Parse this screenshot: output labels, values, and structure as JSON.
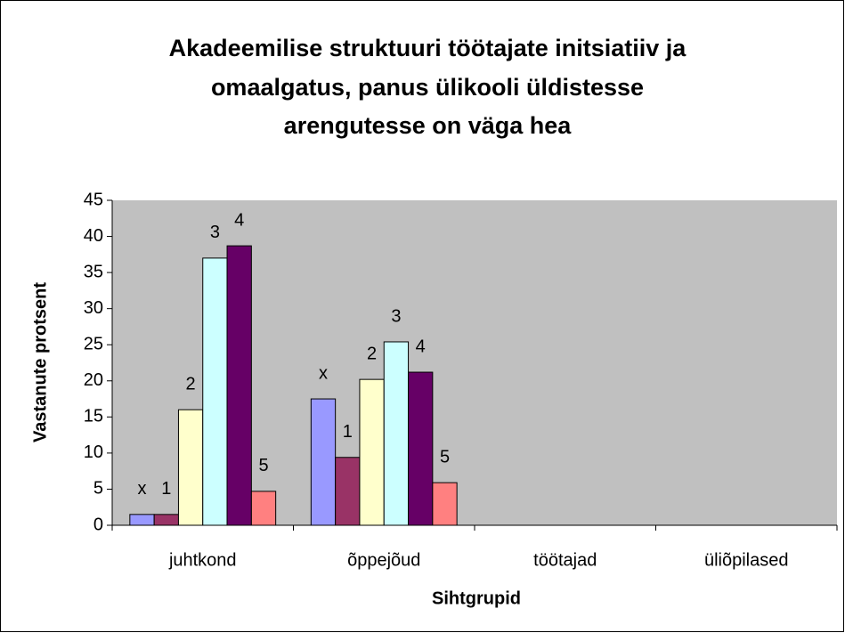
{
  "chart_data": {
    "type": "bar",
    "title": [
      "Akadeemilise struktuuri töötajate initsiatiiv ja",
      "omaalgatus, panus ülikooli üldistesse",
      "arengutesse on väga hea"
    ],
    "x_label": "Sihtgrupid",
    "y_label": "Vastanute protsent",
    "categories": [
      "juhtkond",
      "õppejõud",
      "töötajad",
      "üliõpilased"
    ],
    "series": [
      {
        "name": "x",
        "color": "#9999ff",
        "values": [
          1.5,
          17.5,
          null,
          null
        ]
      },
      {
        "name": "1",
        "color": "#993366",
        "values": [
          1.5,
          9.4,
          null,
          null
        ]
      },
      {
        "name": "2",
        "color": "#ffffcc",
        "values": [
          16,
          20.2,
          null,
          null
        ]
      },
      {
        "name": "3",
        "color": "#ccffff",
        "values": [
          37,
          25.4,
          null,
          null
        ]
      },
      {
        "name": "4",
        "color": "#660066",
        "values": [
          38.7,
          21.2,
          null,
          null
        ]
      },
      {
        "name": "5",
        "color": "#ff8080",
        "values": [
          4.7,
          5.9,
          null,
          null
        ]
      }
    ],
    "ylim": [
      0,
      45
    ],
    "yticks": [
      0,
      5,
      10,
      15,
      20,
      25,
      30,
      35,
      40,
      45
    ],
    "plot_background": "#c0c0c0"
  }
}
